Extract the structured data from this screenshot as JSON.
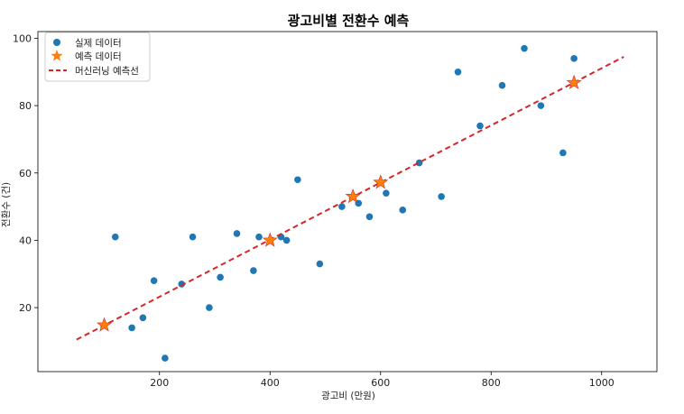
{
  "chart_data": {
    "type": "scatter",
    "title": "광고비별 전환수 예측",
    "xlabel": "광고비 (만원)",
    "ylabel": "전환수 (건)",
    "xlim": [
      -20,
      1100
    ],
    "ylim": [
      1,
      102
    ],
    "xticks": [
      200,
      400,
      600,
      800,
      1000
    ],
    "yticks": [
      20,
      40,
      60,
      80,
      100
    ],
    "grid": false,
    "legend_position": "top-left",
    "colors": {
      "actual": "#1f77b4",
      "predicted": "#ff7f0e",
      "line": "#d62728"
    },
    "series": [
      {
        "name": "실제 데이터",
        "kind": "scatter",
        "points": [
          [
            120,
            41
          ],
          [
            150,
            14
          ],
          [
            170,
            17
          ],
          [
            190,
            28
          ],
          [
            210,
            5
          ],
          [
            240,
            27
          ],
          [
            260,
            41
          ],
          [
            290,
            20
          ],
          [
            310,
            29
          ],
          [
            340,
            42
          ],
          [
            370,
            31
          ],
          [
            380,
            41
          ],
          [
            420,
            41
          ],
          [
            430,
            40
          ],
          [
            450,
            58
          ],
          [
            490,
            33
          ],
          [
            530,
            50
          ],
          [
            560,
            51
          ],
          [
            580,
            47
          ],
          [
            610,
            54
          ],
          [
            640,
            49
          ],
          [
            670,
            63
          ],
          [
            710,
            53
          ],
          [
            740,
            90
          ],
          [
            780,
            74
          ],
          [
            820,
            86
          ],
          [
            860,
            97
          ],
          [
            890,
            80
          ],
          [
            930,
            66
          ],
          [
            950,
            94
          ]
        ]
      },
      {
        "name": "예측 데이터",
        "kind": "star",
        "points": [
          [
            100,
            14.8
          ],
          [
            400,
            40
          ],
          [
            550,
            53
          ],
          [
            600,
            57.2
          ],
          [
            950,
            86.8
          ]
        ]
      },
      {
        "name": "머신러닝 예측선",
        "kind": "dashed-line",
        "points": [
          [
            50,
            10.5
          ],
          [
            1040,
            94.5
          ]
        ]
      }
    ]
  }
}
